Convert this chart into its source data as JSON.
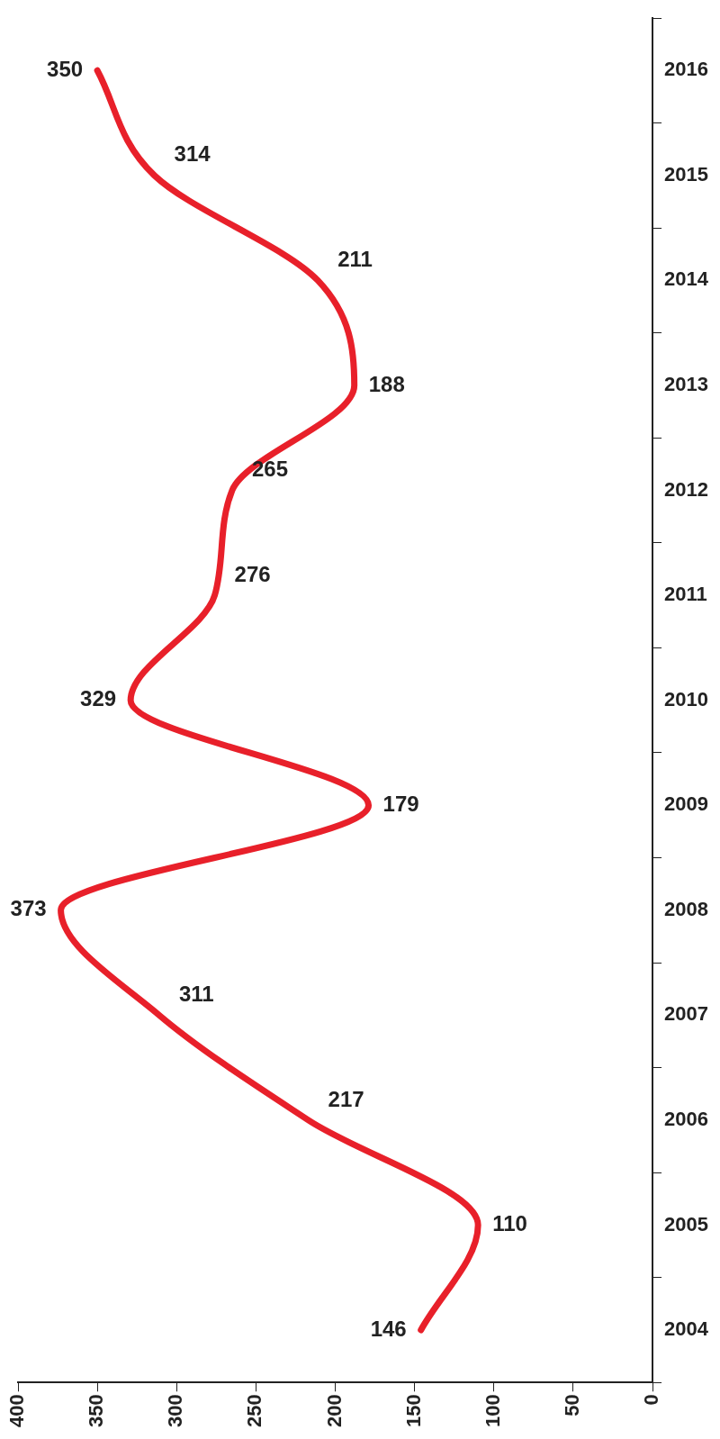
{
  "chart_data": {
    "type": "line",
    "orientation": "horizontal",
    "categories": [
      "2016",
      "2015",
      "2014",
      "2013",
      "2012",
      "2011",
      "2010",
      "2009",
      "2008",
      "2007",
      "2006",
      "2005",
      "2004"
    ],
    "series": [
      {
        "color": "#e8202a",
        "values": [
          350,
          314,
          211,
          188,
          265,
          276,
          329,
          179,
          373,
          311,
          217,
          110,
          146
        ]
      }
    ],
    "xlim": [
      400,
      0
    ],
    "xticks": [
      0,
      50,
      100,
      150,
      200,
      250,
      300,
      350,
      400
    ],
    "data_labels": true,
    "grid": false,
    "legend": false,
    "marker": "none",
    "line_style": "solid"
  }
}
